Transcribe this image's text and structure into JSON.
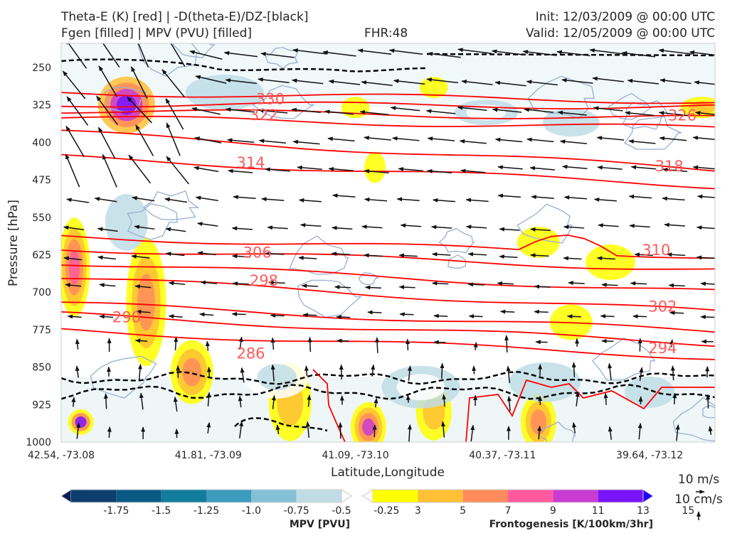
{
  "header": {
    "title_left_1": "Theta-E (K) [red] | -D(theta-E)/DZ-[black]",
    "title_left_2": "Fgen [filled] | MPV (PVU) [filled]",
    "fhr": "FHR:48",
    "init": "Init: 12/03/2009 @ 00:00 UTC",
    "valid": "Valid: 12/05/2009 @ 00:00 UTC"
  },
  "chart_data": {
    "type": "contour",
    "xlabel": "Latitude,Longitude",
    "ylabel": "Pressure [hPa]",
    "x_ticks": [
      "42.54, -73.08",
      "41.81, -73.09",
      "41.09, -73.10",
      "40.37, -73.11",
      "39.64, -73.12"
    ],
    "y_ticks": [
      250,
      325,
      400,
      475,
      550,
      625,
      700,
      775,
      850,
      925,
      1000
    ],
    "ylim": [
      1000,
      200
    ],
    "y_reversed": true,
    "theta_e_labels": [
      {
        "value": "330",
        "x_frac": 0.32,
        "p": 313
      },
      {
        "value": "322",
        "x_frac": 0.31,
        "p": 345
      },
      {
        "value": "314",
        "x_frac": 0.29,
        "p": 441
      },
      {
        "value": "306",
        "x_frac": 0.3,
        "p": 621
      },
      {
        "value": "298",
        "x_frac": 0.31,
        "p": 677
      },
      {
        "value": "290",
        "x_frac": 0.1,
        "p": 750
      },
      {
        "value": "286",
        "x_frac": 0.29,
        "p": 823
      },
      {
        "value": "326",
        "x_frac": 0.95,
        "p": 346
      },
      {
        "value": "318",
        "x_frac": 0.93,
        "p": 448
      },
      {
        "value": "310",
        "x_frac": 0.91,
        "p": 616
      },
      {
        "value": "302",
        "x_frac": 0.92,
        "p": 729
      },
      {
        "value": "294",
        "x_frac": 0.92,
        "p": 812
      }
    ],
    "theta_e_lines": [
      {
        "value": 334,
        "left_p": 300,
        "right_p": 318
      },
      {
        "value": 330,
        "left_p": 323,
        "right_p": 328
      },
      {
        "value": 326,
        "left_p": 336,
        "right_p": 352
      },
      {
        "value": 322,
        "left_p": 350,
        "right_p": 372
      },
      {
        "value": 318,
        "left_p": 380,
        "right_p": 455
      },
      {
        "value": 314,
        "left_p": 430,
        "right_p": 487
      },
      {
        "value": 310,
        "left_p": 588,
        "right_p": 628
      },
      {
        "value": 306,
        "left_p": 612,
        "right_p": 655
      },
      {
        "value": 302,
        "left_p": 640,
        "right_p": 700
      },
      {
        "value": 298,
        "left_p": 670,
        "right_p": 740
      },
      {
        "value": 294,
        "left_p": 723,
        "right_p": 779
      },
      {
        "value": 290,
        "left_p": 745,
        "right_p": 803
      },
      {
        "value": 286,
        "left_p": 776,
        "right_p": 830
      }
    ],
    "mpv_colorbar": {
      "label": "MPV [PVU]",
      "ticks": [
        "-1.75",
        "-1.5",
        "-1.25",
        "-1.0",
        "-0.75",
        "-0.5",
        "-0.25"
      ],
      "colors": [
        "#081d58",
        "#0c3f6e",
        "#0b5a86",
        "#117c9d",
        "#3d9bbe",
        "#84c1d6",
        "#c0dde6",
        "#ffffff"
      ]
    },
    "fgen_colorbar": {
      "label": "Frontogenesis [K/100km/3hr]",
      "ticks": [
        "3",
        "5",
        "7",
        "9",
        "11",
        "13",
        "15"
      ],
      "colors": [
        "#ffffff",
        "#ffff00",
        "#ffc035",
        "#ff8c5a",
        "#ff5aa0",
        "#c83cd2",
        "#7814ff",
        "#1e00ff"
      ]
    },
    "wind_key": {
      "u_label": "10 m/s",
      "w_label": "10 cm/s"
    }
  }
}
